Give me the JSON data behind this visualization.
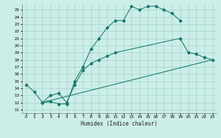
{
  "xlabel": "Humidex (Indice chaleur)",
  "bg_color": "#cceee8",
  "grid_color": "#aad4ce",
  "line_color": "#1a7a6e",
  "xlim": [
    -0.5,
    23.5
  ],
  "ylim": [
    10.5,
    25.8
  ],
  "xticks": [
    0,
    1,
    2,
    3,
    4,
    5,
    6,
    7,
    8,
    9,
    10,
    11,
    12,
    13,
    14,
    15,
    16,
    17,
    18,
    19,
    20,
    21,
    22,
    23
  ],
  "yticks": [
    11,
    12,
    13,
    14,
    15,
    16,
    17,
    18,
    19,
    20,
    21,
    22,
    23,
    24,
    25
  ],
  "curve1_x": [
    0,
    1,
    2,
    3,
    4,
    5,
    6,
    7,
    8,
    9,
    10,
    11,
    12,
    13,
    14,
    15,
    16,
    17,
    18,
    19
  ],
  "curve1_y": [
    14.5,
    13.5,
    12.0,
    12.1,
    11.8,
    11.8,
    15.0,
    17.0,
    19.5,
    21.0,
    22.5,
    23.5,
    23.5,
    25.5,
    25.0,
    25.5,
    25.5,
    25.0,
    24.5,
    23.5
  ],
  "curve2_x": [
    2,
    3,
    4,
    5,
    6,
    7,
    8,
    9,
    10,
    11,
    19,
    20,
    21,
    22,
    23
  ],
  "curve2_y": [
    12.0,
    13.0,
    13.3,
    12.0,
    14.5,
    16.5,
    17.5,
    18.0,
    18.5,
    19.0,
    21.0,
    19.0,
    18.8,
    18.3,
    18.0
  ],
  "curve3_x": [
    2,
    23
  ],
  "curve3_y": [
    12.0,
    18.0
  ]
}
